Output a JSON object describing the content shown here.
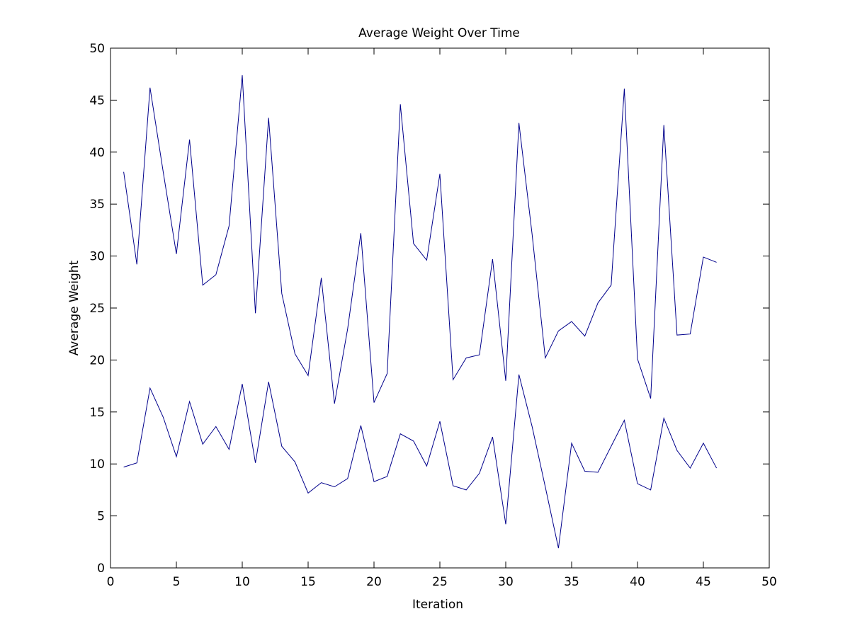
{
  "chart_data": {
    "type": "line",
    "title": "Average Weight Over Time",
    "xlabel": "Iteration",
    "ylabel": "Average Weight",
    "xlim": [
      0,
      50
    ],
    "ylim": [
      0,
      50
    ],
    "xticks": [
      0,
      5,
      10,
      15,
      20,
      25,
      30,
      35,
      40,
      45,
      50
    ],
    "yticks": [
      0,
      5,
      10,
      15,
      20,
      25,
      30,
      35,
      40,
      45,
      50
    ],
    "grid": false,
    "line_color": "#00008b",
    "x": [
      1,
      2,
      3,
      4,
      5,
      6,
      7,
      8,
      9,
      10,
      11,
      12,
      13,
      14,
      15,
      16,
      17,
      18,
      19,
      20,
      21,
      22,
      23,
      24,
      25,
      26,
      27,
      28,
      29,
      30,
      31,
      32,
      33,
      34,
      35,
      36,
      37,
      38,
      39,
      40,
      41,
      42,
      43,
      44,
      45,
      46
    ],
    "series": [
      {
        "values": [
          38.1,
          29.2,
          46.2,
          38.1,
          30.2,
          41.2,
          27.2,
          28.2,
          32.9,
          47.4,
          24.5,
          43.3,
          26.4,
          20.6,
          18.5,
          27.9,
          15.8,
          23.0,
          32.2,
          15.9,
          18.7,
          44.6,
          31.2,
          29.6,
          37.9,
          18.1,
          20.2,
          20.5,
          29.7,
          18.0,
          42.8,
          32.1,
          20.2,
          22.8,
          23.7,
          22.3,
          25.5,
          27.2,
          46.1,
          20.1,
          16.3,
          42.6,
          22.4,
          22.5,
          29.9,
          29.4
        ]
      },
      {
        "values": [
          9.7,
          10.1,
          17.3,
          14.5,
          10.7,
          16.0,
          11.9,
          13.6,
          11.4,
          17.7,
          10.1,
          17.9,
          11.7,
          10.2,
          7.2,
          8.2,
          7.8,
          8.6,
          13.7,
          8.3,
          8.8,
          12.9,
          12.2,
          9.8,
          14.1,
          7.9,
          7.5,
          9.1,
          12.6,
          4.2,
          18.6,
          13.6,
          7.8,
          1.9,
          12.0,
          9.3,
          9.2,
          11.7,
          14.2,
          8.1,
          7.5,
          14.4,
          11.3,
          9.6,
          12.0,
          9.6
        ]
      }
    ]
  }
}
